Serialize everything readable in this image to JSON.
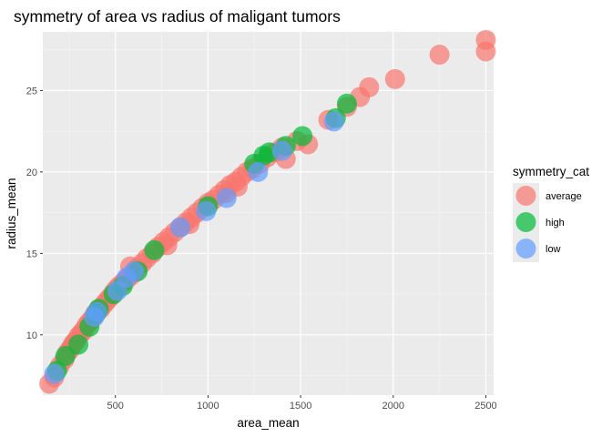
{
  "chart_data": {
    "type": "scatter",
    "title": "symmetry of area vs radius of maligant tumors",
    "xlabel": "area_mean",
    "ylabel": "radius_mean",
    "xlim": [
      108,
      2542
    ],
    "ylim": [
      6.3,
      28.6
    ],
    "x_ticks": [
      500,
      1000,
      1500,
      2000,
      2500
    ],
    "y_ticks": [
      10,
      15,
      20,
      25
    ],
    "grid": true,
    "legend": {
      "title": "symmetry_cat",
      "position": "right"
    },
    "series": [
      {
        "name": "average",
        "color": "#F8766D",
        "points": [
          [
            143,
            7.0
          ],
          [
            170,
            7.4
          ],
          [
            200,
            8.1
          ],
          [
            225,
            8.5
          ],
          [
            240,
            8.9
          ],
          [
            255,
            9.1
          ],
          [
            265,
            9.3
          ],
          [
            275,
            9.5
          ],
          [
            285,
            9.6
          ],
          [
            300,
            9.9
          ],
          [
            315,
            10.1
          ],
          [
            330,
            10.3
          ],
          [
            345,
            10.6
          ],
          [
            360,
            10.8
          ],
          [
            375,
            11.0
          ],
          [
            390,
            11.3
          ],
          [
            405,
            11.5
          ],
          [
            420,
            11.6
          ],
          [
            440,
            11.9
          ],
          [
            455,
            12.1
          ],
          [
            470,
            12.3
          ],
          [
            490,
            12.6
          ],
          [
            505,
            12.8
          ],
          [
            520,
            13.0
          ],
          [
            540,
            13.2
          ],
          [
            560,
            13.4
          ],
          [
            580,
            13.6
          ],
          [
            600,
            13.8
          ],
          [
            620,
            14.1
          ],
          [
            645,
            14.4
          ],
          [
            670,
            14.7
          ],
          [
            700,
            15.0
          ],
          [
            730,
            15.4
          ],
          [
            760,
            15.7
          ],
          [
            790,
            16.0
          ],
          [
            820,
            16.3
          ],
          [
            850,
            16.6
          ],
          [
            880,
            16.9
          ],
          [
            910,
            17.2
          ],
          [
            940,
            17.5
          ],
          [
            970,
            17.8
          ],
          [
            1000,
            18.1
          ],
          [
            1030,
            18.3
          ],
          [
            1060,
            18.6
          ],
          [
            1090,
            18.9
          ],
          [
            1120,
            19.2
          ],
          [
            1150,
            19.4
          ],
          [
            1180,
            19.7
          ],
          [
            1210,
            20.0
          ],
          [
            1240,
            20.2
          ],
          [
            1280,
            20.5
          ],
          [
            1320,
            20.9
          ],
          [
            1360,
            21.2
          ],
          [
            1400,
            21.5
          ],
          [
            1420,
            20.8
          ],
          [
            1480,
            21.9
          ],
          [
            1540,
            21.7
          ],
          [
            1650,
            23.2
          ],
          [
            1750,
            24.0
          ],
          [
            1820,
            24.6
          ],
          [
            1870,
            25.2
          ],
          [
            2010,
            25.7
          ],
          [
            2250,
            27.2
          ],
          [
            2500,
            27.4
          ],
          [
            2500,
            28.1
          ],
          [
            780,
            15.5
          ],
          [
            900,
            16.8
          ],
          [
            1100,
            18.7
          ],
          [
            1160,
            19.1
          ],
          [
            580,
            14.2
          ]
        ]
      },
      {
        "name": "high",
        "color": "#00BA38",
        "points": [
          [
            185,
            7.8
          ],
          [
            230,
            8.7
          ],
          [
            300,
            9.4
          ],
          [
            360,
            10.5
          ],
          [
            395,
            11.3
          ],
          [
            410,
            11.6
          ],
          [
            540,
            13.0
          ],
          [
            620,
            13.9
          ],
          [
            710,
            15.2
          ],
          [
            1000,
            17.9
          ],
          [
            1250,
            20.5
          ],
          [
            1300,
            21.0
          ],
          [
            1330,
            21.2
          ],
          [
            1420,
            21.6
          ],
          [
            1510,
            22.2
          ],
          [
            1750,
            24.2
          ],
          [
            1690,
            23.3
          ],
          [
            490,
            12.5
          ]
        ]
      },
      {
        "name": "low",
        "color": "#619CFF",
        "points": [
          [
            170,
            7.6
          ],
          [
            385,
            11.1
          ],
          [
            400,
            11.4
          ],
          [
            510,
            12.7
          ],
          [
            600,
            13.9
          ],
          [
            850,
            16.6
          ],
          [
            990,
            17.6
          ],
          [
            1100,
            18.4
          ],
          [
            1270,
            20.0
          ],
          [
            1400,
            21.3
          ],
          [
            1680,
            23.1
          ],
          [
            560,
            13.5
          ]
        ]
      }
    ]
  }
}
